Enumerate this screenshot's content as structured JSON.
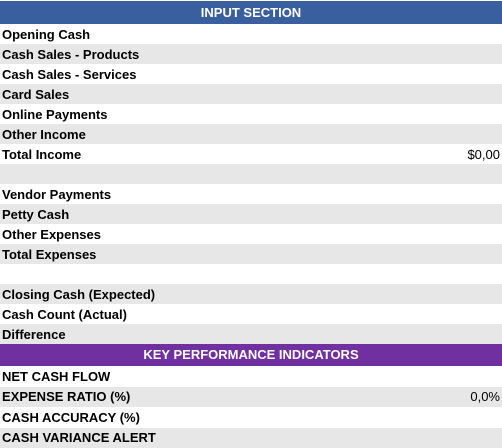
{
  "input_section": {
    "title": "INPUT SECTION",
    "rows": [
      {
        "label": "Opening Cash",
        "value": ""
      },
      {
        "label": "Cash Sales - Products",
        "value": ""
      },
      {
        "label": "Cash Sales - Services",
        "value": ""
      },
      {
        "label": "Card Sales",
        "value": ""
      },
      {
        "label": "Online Payments",
        "value": ""
      },
      {
        "label": "Other Income",
        "value": ""
      },
      {
        "label": "Total Income",
        "value": "$0,00"
      },
      {
        "label": "",
        "value": ""
      },
      {
        "label": "Vendor Payments",
        "value": ""
      },
      {
        "label": "Petty Cash",
        "value": ""
      },
      {
        "label": "Other Expenses",
        "value": ""
      },
      {
        "label": "Total Expenses",
        "value": ""
      },
      {
        "label": "",
        "value": ""
      },
      {
        "label": "Closing Cash (Expected)",
        "value": ""
      },
      {
        "label": "Cash Count (Actual)",
        "value": ""
      },
      {
        "label": "Difference",
        "value": ""
      }
    ]
  },
  "kpi_section": {
    "title": "KEY PERFORMANCE INDICATORS",
    "rows": [
      {
        "label": "NET CASH FLOW",
        "value": ""
      },
      {
        "label": "EXPENSE RATIO (%)",
        "value": "0,0%"
      },
      {
        "label": "CASH ACCURACY (%)",
        "value": ""
      },
      {
        "label": "CASH VARIANCE ALERT",
        "value": ""
      }
    ]
  },
  "colors": {
    "input_header": "#3a5f9f",
    "kpi_header": "#7030a0",
    "band_gray": "#e7e7e7"
  }
}
